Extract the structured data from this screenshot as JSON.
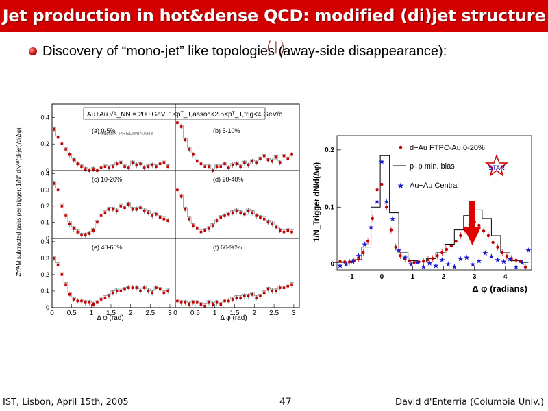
{
  "slide": {
    "title": "Jet production in hot&dense QCD: modified (di)jet structure (I)",
    "bullet": "Discovery of “mono-jet” like topologies (away-side disappearance):",
    "footer_left": "IST, Lisbon, April 15th, 2005",
    "page_number": "47",
    "footer_right": "David d'Enterria (Columbia Univ.)",
    "colors": {
      "title_bg": "#d40000",
      "data_red": "#c00000",
      "star_blue": "#1a1ad0"
    }
  },
  "left_figure": {
    "y_title": "ZYAM subtracted pairs per trigger: 1/Nᴬ dNᴬᴮ(di-jet)/d(Δφ)",
    "header_text": "Au+Au √s_NN = 200 GeV;  1<pᵀ_T,assoc<2.5<pᵀ_T,trig<4 GeV/c",
    "watermark": "PHENIX PRELIMINARY",
    "x_title": "Δ φ (rad)",
    "x_ticks": [
      "0",
      "0.5",
      "1",
      "1.5",
      "2",
      "2.5",
      "3"
    ],
    "panels": [
      {
        "label": "(a) 0-5%",
        "y_ticks": [
          "0",
          "0.2",
          "0.4"
        ],
        "ylim": [
          0,
          0.5
        ]
      },
      {
        "label": "(b) 5-10%",
        "y_ticks": [],
        "ylim": [
          0,
          0.5
        ]
      },
      {
        "label": "(c) 10-20%",
        "y_ticks": [
          "0",
          "0.1",
          "0.2",
          "0.3",
          "0.4"
        ],
        "ylim": [
          0,
          0.42
        ]
      },
      {
        "label": "(d) 20-40%",
        "y_ticks": [],
        "ylim": [
          0,
          0.42
        ]
      },
      {
        "label": "(e) 40-60%",
        "y_ticks": [
          "0",
          "0.1",
          "0.2",
          "0.3",
          "0.4"
        ],
        "ylim": [
          0,
          0.42
        ]
      },
      {
        "label": "(f) 60-90%",
        "y_ticks": [],
        "ylim": [
          0,
          0.42
        ]
      }
    ]
  },
  "right_figure": {
    "ylabel": "1/N_Trigger dN/d(Δφ)",
    "xlabel": "Δ φ (radians)",
    "x_ticks": [
      "-1",
      "0",
      "1",
      "2",
      "3",
      "4"
    ],
    "y_ticks": [
      "0",
      "0.1",
      "0.2"
    ],
    "star_logo": "STAR",
    "legend": [
      {
        "label": "d+Au FTPC-Au 0-20%",
        "marker": "circle"
      },
      {
        "label": "p+p min. bias",
        "marker": "line"
      },
      {
        "label": "Au+Au Central",
        "marker": "star"
      }
    ]
  },
  "chart_data": [
    {
      "type": "scatter",
      "title": "(a) 0-5%",
      "x": [
        0.05,
        0.15,
        0.25,
        0.35,
        0.45,
        0.55,
        0.65,
        0.75,
        0.85,
        0.95,
        1.05,
        1.15,
        1.25,
        1.35,
        1.45,
        1.55,
        1.65,
        1.75,
        1.85,
        1.95,
        2.05,
        2.15,
        2.25,
        2.35,
        2.45,
        2.55,
        2.65,
        2.75,
        2.85,
        2.95
      ],
      "y": [
        0.31,
        0.25,
        0.2,
        0.16,
        0.12,
        0.08,
        0.05,
        0.03,
        0.01,
        0.0,
        0.01,
        0.0,
        0.02,
        0.03,
        0.02,
        0.03,
        0.05,
        0.06,
        0.03,
        0.02,
        0.06,
        0.04,
        0.05,
        0.02,
        0.03,
        0.04,
        0.03,
        0.05,
        0.06,
        0.03
      ],
      "xlim": [
        0,
        3.14
      ],
      "ylim": [
        0,
        0.5
      ]
    },
    {
      "type": "scatter",
      "title": "(b) 5-10%",
      "x": [
        0.05,
        0.15,
        0.25,
        0.35,
        0.45,
        0.55,
        0.65,
        0.75,
        0.85,
        0.95,
        1.05,
        1.15,
        1.25,
        1.35,
        1.45,
        1.55,
        1.65,
        1.75,
        1.85,
        1.95,
        2.05,
        2.15,
        2.25,
        2.35,
        2.45,
        2.55,
        2.65,
        2.75,
        2.85,
        2.95
      ],
      "y": [
        0.36,
        0.33,
        0.23,
        0.16,
        0.12,
        0.07,
        0.05,
        0.03,
        0.03,
        0.0,
        0.03,
        0.03,
        0.05,
        0.02,
        0.04,
        0.05,
        0.03,
        0.06,
        0.04,
        0.07,
        0.06,
        0.09,
        0.11,
        0.08,
        0.07,
        0.1,
        0.06,
        0.11,
        0.09,
        0.12
      ],
      "xlim": [
        0,
        3.14
      ],
      "ylim": [
        0,
        0.5
      ]
    },
    {
      "type": "scatter",
      "title": "(c) 10-20%",
      "x": [
        0.05,
        0.15,
        0.25,
        0.35,
        0.45,
        0.55,
        0.65,
        0.75,
        0.85,
        0.95,
        1.05,
        1.15,
        1.25,
        1.35,
        1.45,
        1.55,
        1.65,
        1.75,
        1.85,
        1.95,
        2.05,
        2.15,
        2.25,
        2.35,
        2.45,
        2.55,
        2.65,
        2.75,
        2.85,
        2.95
      ],
      "y": [
        0.34,
        0.3,
        0.2,
        0.14,
        0.09,
        0.06,
        0.04,
        0.02,
        0.02,
        0.03,
        0.05,
        0.1,
        0.14,
        0.16,
        0.18,
        0.18,
        0.17,
        0.2,
        0.19,
        0.21,
        0.18,
        0.18,
        0.19,
        0.17,
        0.16,
        0.14,
        0.15,
        0.13,
        0.12,
        0.11
      ],
      "xlim": [
        0,
        3.14
      ],
      "ylim": [
        0,
        0.42
      ]
    },
    {
      "type": "scatter",
      "title": "(d) 20-40%",
      "x": [
        0.05,
        0.15,
        0.25,
        0.35,
        0.45,
        0.55,
        0.65,
        0.75,
        0.85,
        0.95,
        1.05,
        1.15,
        1.25,
        1.35,
        1.45,
        1.55,
        1.65,
        1.75,
        1.85,
        1.95,
        2.05,
        2.15,
        2.25,
        2.35,
        2.45,
        2.55,
        2.65,
        2.75,
        2.85,
        2.95
      ],
      "y": [
        0.3,
        0.26,
        0.18,
        0.12,
        0.08,
        0.06,
        0.04,
        0.05,
        0.06,
        0.08,
        0.11,
        0.13,
        0.14,
        0.15,
        0.16,
        0.17,
        0.16,
        0.15,
        0.17,
        0.16,
        0.14,
        0.13,
        0.12,
        0.1,
        0.09,
        0.07,
        0.05,
        0.04,
        0.05,
        0.04
      ],
      "xlim": [
        0,
        3.14
      ],
      "ylim": [
        0,
        0.42
      ]
    },
    {
      "type": "scatter",
      "title": "(e) 40-60%",
      "x": [
        0.05,
        0.15,
        0.25,
        0.35,
        0.45,
        0.55,
        0.65,
        0.75,
        0.85,
        0.95,
        1.05,
        1.15,
        1.25,
        1.35,
        1.45,
        1.55,
        1.65,
        1.75,
        1.85,
        1.95,
        2.05,
        2.15,
        2.25,
        2.35,
        2.45,
        2.55,
        2.65,
        2.75,
        2.85,
        2.95
      ],
      "y": [
        0.3,
        0.26,
        0.2,
        0.14,
        0.08,
        0.05,
        0.04,
        0.04,
        0.03,
        0.03,
        0.02,
        0.03,
        0.05,
        0.06,
        0.07,
        0.09,
        0.1,
        0.1,
        0.11,
        0.12,
        0.12,
        0.12,
        0.1,
        0.12,
        0.1,
        0.09,
        0.12,
        0.11,
        0.09,
        0.1
      ],
      "xlim": [
        0,
        3.14
      ],
      "ylim": [
        0,
        0.42
      ]
    },
    {
      "type": "scatter",
      "title": "(f) 60-90%",
      "x": [
        0.05,
        0.15,
        0.25,
        0.35,
        0.45,
        0.55,
        0.65,
        0.75,
        0.85,
        0.95,
        1.05,
        1.15,
        1.25,
        1.35,
        1.45,
        1.55,
        1.65,
        1.75,
        1.85,
        1.95,
        2.05,
        2.15,
        2.25,
        2.35,
        2.45,
        2.55,
        2.65,
        2.75,
        2.85,
        2.95
      ],
      "y": [
        0.04,
        0.03,
        0.03,
        0.02,
        0.03,
        0.03,
        0.02,
        0.01,
        0.03,
        0.02,
        0.03,
        0.02,
        0.04,
        0.04,
        0.05,
        0.06,
        0.06,
        0.07,
        0.07,
        0.08,
        0.06,
        0.07,
        0.09,
        0.11,
        0.1,
        0.1,
        0.12,
        0.12,
        0.13,
        0.14
      ],
      "xlim": [
        0,
        3.14
      ],
      "ylim": [
        0,
        0.42
      ]
    },
    {
      "type": "scatter",
      "xlabel": "Δ φ (radians)",
      "ylabel": "1/N_Trigger dN/d(Δφ)",
      "xlim": [
        -1.45,
        4.85
      ],
      "ylim": [
        -0.01,
        0.225
      ],
      "series": [
        {
          "name": "d+Au FTPC-Au 0-20%",
          "x": [
            -1.35,
            -1.2,
            -1.05,
            -0.9,
            -0.75,
            -0.6,
            -0.45,
            -0.3,
            -0.15,
            0.0,
            0.15,
            0.3,
            0.45,
            0.6,
            0.75,
            0.9,
            1.05,
            1.2,
            1.35,
            1.5,
            1.65,
            1.8,
            1.95,
            2.1,
            2.25,
            2.4,
            2.55,
            2.7,
            2.85,
            3.0,
            3.15,
            3.3,
            3.45,
            3.6,
            3.75,
            3.9,
            4.05,
            4.2,
            4.35,
            4.5,
            4.65
          ],
          "y": [
            0.005,
            0.004,
            0.004,
            0.006,
            0.01,
            0.02,
            0.04,
            0.08,
            0.13,
            0.14,
            0.1,
            0.06,
            0.03,
            0.015,
            0.01,
            0.006,
            0.003,
            0.004,
            0.005,
            0.008,
            0.01,
            0.015,
            0.02,
            0.026,
            0.032,
            0.04,
            0.05,
            0.06,
            0.07,
            0.074,
            0.068,
            0.058,
            0.05,
            0.038,
            0.03,
            0.02,
            0.014,
            0.01,
            0.007,
            0.005,
            -0.005
          ]
        },
        {
          "name": "p+p min. bias",
          "x": [
            -1.4,
            -1.1,
            -0.8,
            -0.5,
            -0.2,
            0.1,
            0.4,
            0.7,
            1.0,
            1.3,
            1.6,
            1.9,
            2.2,
            2.5,
            2.8,
            3.1,
            3.4,
            3.7,
            4.0,
            4.3,
            4.6
          ],
          "y": [
            0.003,
            0.004,
            0.008,
            0.03,
            0.1,
            0.19,
            0.09,
            0.02,
            0.006,
            0.004,
            0.01,
            0.02,
            0.035,
            0.06,
            0.085,
            0.095,
            0.08,
            0.05,
            0.02,
            0.006,
            0.003
          ]
        },
        {
          "name": "Au+Au Central",
          "x": [
            -1.35,
            -1.15,
            -0.95,
            -0.75,
            -0.55,
            -0.35,
            -0.15,
            0.0,
            0.15,
            0.35,
            0.55,
            0.75,
            0.95,
            1.15,
            1.35,
            1.55,
            1.75,
            1.95,
            2.15,
            2.35,
            2.55,
            2.75,
            2.95,
            3.15,
            3.35,
            3.55,
            3.75,
            3.95,
            4.15,
            4.35,
            4.55,
            4.75
          ],
          "y": [
            -0.002,
            0.0,
            0.005,
            0.015,
            0.035,
            0.065,
            0.11,
            0.18,
            0.11,
            0.08,
            0.025,
            0.012,
            0.0,
            0.004,
            -0.004,
            0.002,
            -0.002,
            0.008,
            0.0,
            -0.004,
            0.01,
            0.012,
            0.0,
            0.006,
            0.02,
            0.014,
            0.008,
            0.005,
            0.01,
            -0.004,
            0.003,
            0.025
          ]
        }
      ]
    }
  ]
}
